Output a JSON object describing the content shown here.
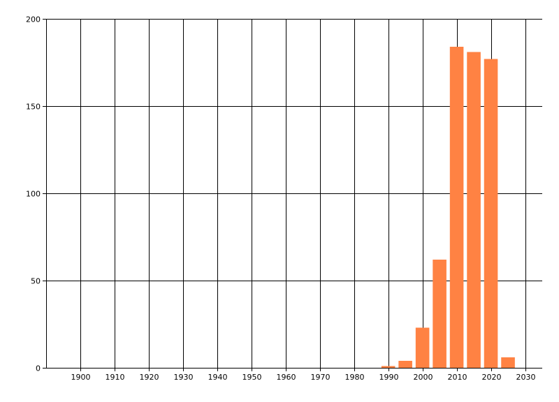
{
  "chart_data": {
    "type": "bar",
    "title": "",
    "xlabel": "",
    "ylabel": "",
    "x": [
      1990,
      1995,
      2000,
      2005,
      2010,
      2015,
      2020,
      2025
    ],
    "values": [
      1,
      4,
      23,
      62,
      184,
      181,
      177,
      6
    ],
    "bar_width_years": 4,
    "xlim": [
      1890,
      2035
    ],
    "ylim": [
      0,
      200
    ],
    "xticks": [
      1900,
      1910,
      1920,
      1930,
      1940,
      1950,
      1960,
      1970,
      1980,
      1990,
      2000,
      2010,
      2020,
      2030
    ],
    "yticks": [
      0,
      50,
      100,
      150,
      200
    ],
    "grid": true,
    "legend": "none",
    "bar_color": "#FF8243"
  }
}
